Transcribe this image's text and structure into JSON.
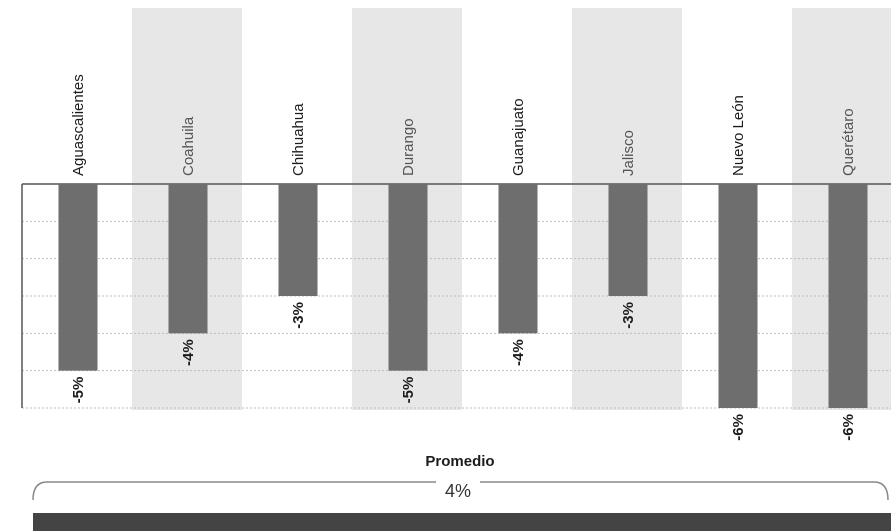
{
  "chart_data": {
    "type": "bar",
    "orientation": "downward",
    "categories": [
      "Aguascalientes",
      "Coahuila",
      "Chihuahua",
      "Durango",
      "Guanajuato",
      "Jalisco",
      "Nuevo León",
      "Querétaro"
    ],
    "values": [
      -5,
      -4,
      -3,
      -5,
      -4,
      -3,
      -6,
      -6
    ],
    "value_labels": [
      "-5%",
      "-4%",
      "-3%",
      "-5%",
      "-4%",
      "-3%",
      "-6%",
      "-6%"
    ],
    "ylim": [
      -6,
      0
    ],
    "grid": true,
    "alternating_column_shading": true,
    "colors": {
      "bar": "#6e6e6e",
      "column_shade": "#e7e7e7",
      "grid": "#bdbdbd",
      "axis": "#555555",
      "average_bar": "#444444"
    },
    "average": {
      "label": "Promedio",
      "value_label": "4%"
    }
  }
}
